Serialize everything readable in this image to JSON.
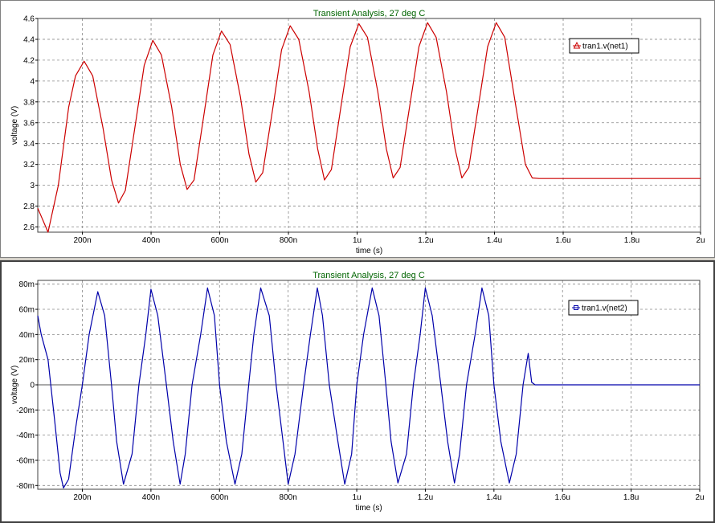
{
  "chart_data": [
    {
      "type": "line",
      "title": "Transient Analysis, 27 deg C",
      "xlabel": "time (s)",
      "ylabel": "voltage (V)",
      "xlim": [
        7e-08,
        2e-06
      ],
      "ylim": [
        2.55,
        4.6
      ],
      "x_ticks": [
        {
          "v": 2e-07,
          "label": "200n"
        },
        {
          "v": 4e-07,
          "label": "400n"
        },
        {
          "v": 6e-07,
          "label": "600n"
        },
        {
          "v": 8e-07,
          "label": "800n"
        },
        {
          "v": 1e-06,
          "label": "1u"
        },
        {
          "v": 1.2e-06,
          "label": "1.2u"
        },
        {
          "v": 1.4e-06,
          "label": "1.4u"
        },
        {
          "v": 1.6e-06,
          "label": "1.6u"
        },
        {
          "v": 1.8e-06,
          "label": "1.8u"
        },
        {
          "v": 2e-06,
          "label": "2u"
        }
      ],
      "y_ticks": [
        {
          "v": 2.6,
          "label": "2.6"
        },
        {
          "v": 2.8,
          "label": "2.8"
        },
        {
          "v": 3.0,
          "label": "3"
        },
        {
          "v": 3.2,
          "label": "3.2"
        },
        {
          "v": 3.4,
          "label": "3.4"
        },
        {
          "v": 3.6,
          "label": "3.6"
        },
        {
          "v": 3.8,
          "label": "3.8"
        },
        {
          "v": 4.0,
          "label": "4"
        },
        {
          "v": 4.2,
          "label": "4.2"
        },
        {
          "v": 4.4,
          "label": "4.4"
        },
        {
          "v": 4.6,
          "label": "4.6"
        }
      ],
      "grid": true,
      "legend_position": "top-right",
      "series": [
        {
          "name": "tran1.v(net1)",
          "color": "#cc0000",
          "marker": "triangle",
          "x": [
            7e-08,
            1e-07,
            1.3e-07,
            1.6e-07,
            1.8e-07,
            2.05e-07,
            2.3e-07,
            2.6e-07,
            2.85e-07,
            3.05e-07,
            3.25e-07,
            3.55e-07,
            3.8e-07,
            4.05e-07,
            4.3e-07,
            4.6e-07,
            4.85e-07,
            5.05e-07,
            5.25e-07,
            5.55e-07,
            5.8e-07,
            6.05e-07,
            6.3e-07,
            6.6e-07,
            6.85e-07,
            7.05e-07,
            7.25e-07,
            7.55e-07,
            7.8e-07,
            8.05e-07,
            8.3e-07,
            8.6e-07,
            8.85e-07,
            9.05e-07,
            9.25e-07,
            9.55e-07,
            9.8e-07,
            1.005e-06,
            1.03e-06,
            1.06e-06,
            1.085e-06,
            1.105e-06,
            1.125e-06,
            1.155e-06,
            1.18e-06,
            1.205e-06,
            1.23e-06,
            1.26e-06,
            1.285e-06,
            1.305e-06,
            1.325e-06,
            1.355e-06,
            1.38e-06,
            1.405e-06,
            1.43e-06,
            1.46e-06,
            1.49e-06,
            1.51e-06,
            1.53e-06,
            2e-06
          ],
          "y": [
            2.78,
            2.55,
            3.0,
            3.75,
            4.05,
            4.19,
            4.05,
            3.55,
            3.05,
            2.83,
            2.95,
            3.6,
            4.15,
            4.39,
            4.25,
            3.75,
            3.2,
            2.96,
            3.05,
            3.7,
            4.25,
            4.48,
            4.35,
            3.85,
            3.3,
            3.03,
            3.12,
            3.75,
            4.3,
            4.53,
            4.4,
            3.9,
            3.35,
            3.05,
            3.15,
            3.8,
            4.33,
            4.55,
            4.42,
            3.9,
            3.35,
            3.07,
            3.17,
            3.8,
            4.33,
            4.56,
            4.42,
            3.9,
            3.35,
            3.07,
            3.17,
            3.8,
            4.33,
            4.56,
            4.42,
            3.8,
            3.2,
            3.07,
            3.065,
            3.065
          ]
        }
      ]
    },
    {
      "type": "line",
      "title": "Transient Analysis, 27 deg C",
      "xlabel": "time (s)",
      "ylabel": "voltage (V)",
      "xlim": [
        7e-08,
        2e-06
      ],
      "ylim": [
        -0.083,
        0.083
      ],
      "x_ticks": [
        {
          "v": 2e-07,
          "label": "200n"
        },
        {
          "v": 4e-07,
          "label": "400n"
        },
        {
          "v": 6e-07,
          "label": "600n"
        },
        {
          "v": 8e-07,
          "label": "800n"
        },
        {
          "v": 1e-06,
          "label": "1u"
        },
        {
          "v": 1.2e-06,
          "label": "1.2u"
        },
        {
          "v": 1.4e-06,
          "label": "1.4u"
        },
        {
          "v": 1.6e-06,
          "label": "1.6u"
        },
        {
          "v": 1.8e-06,
          "label": "1.8u"
        },
        {
          "v": 2e-06,
          "label": "2u"
        }
      ],
      "y_ticks": [
        {
          "v": -0.08,
          "label": "-80m"
        },
        {
          "v": -0.06,
          "label": "-60m"
        },
        {
          "v": -0.04,
          "label": "-40m"
        },
        {
          "v": -0.02,
          "label": "-20m"
        },
        {
          "v": 0,
          "label": "0"
        },
        {
          "v": 0.02,
          "label": "20m"
        },
        {
          "v": 0.04,
          "label": "40m"
        },
        {
          "v": 0.06,
          "label": "60m"
        },
        {
          "v": 0.08,
          "label": "80m"
        }
      ],
      "grid": true,
      "legend_position": "top-right",
      "series": [
        {
          "name": "tran1.v(net2)",
          "color": "#0000aa",
          "marker": "square",
          "x": [
            7e-08,
            8e-08,
            1e-07,
            1.2e-07,
            1.35e-07,
            1.45e-07,
            1.6e-07,
            1.8e-07,
            2e-07,
            2.2e-07,
            2.45e-07,
            2.65e-07,
            2.85e-07,
            3e-07,
            3.2e-07,
            3.45e-07,
            3.65e-07,
            3.85e-07,
            4e-07,
            4.2e-07,
            4.45e-07,
            4.65e-07,
            4.85e-07,
            5e-07,
            5.2e-07,
            5.45e-07,
            5.65e-07,
            5.85e-07,
            6e-07,
            6.2e-07,
            6.45e-07,
            6.65e-07,
            6.85e-07,
            7e-07,
            7.2e-07,
            7.45e-07,
            7.65e-07,
            7.85e-07,
            8e-07,
            8.2e-07,
            8.45e-07,
            8.65e-07,
            8.85e-07,
            9e-07,
            9.2e-07,
            9.45e-07,
            9.65e-07,
            9.85e-07,
            1e-06,
            1.02e-06,
            1.045e-06,
            1.065e-06,
            1.085e-06,
            1.1e-06,
            1.12e-06,
            1.145e-06,
            1.165e-06,
            1.185e-06,
            1.2e-06,
            1.22e-06,
            1.245e-06,
            1.265e-06,
            1.285e-06,
            1.3e-06,
            1.32e-06,
            1.345e-06,
            1.365e-06,
            1.385e-06,
            1.4e-06,
            1.42e-06,
            1.445e-06,
            1.465e-06,
            1.485e-06,
            1.5e-06,
            1.51e-06,
            1.52e-06,
            2e-06
          ],
          "y": [
            0.055,
            0.04,
            0.02,
            -0.03,
            -0.07,
            -0.082,
            -0.075,
            -0.035,
            0.0,
            0.04,
            0.074,
            0.055,
            0.0,
            -0.045,
            -0.079,
            -0.055,
            0.0,
            0.04,
            0.076,
            0.055,
            0.0,
            -0.045,
            -0.079,
            -0.055,
            0.0,
            0.04,
            0.077,
            0.055,
            0.0,
            -0.045,
            -0.079,
            -0.055,
            0.0,
            0.04,
            0.077,
            0.055,
            0.0,
            -0.045,
            -0.079,
            -0.055,
            0.0,
            0.04,
            0.077,
            0.055,
            0.0,
            -0.045,
            -0.079,
            -0.055,
            0.0,
            0.04,
            0.077,
            0.055,
            0.0,
            -0.045,
            -0.078,
            -0.055,
            0.0,
            0.04,
            0.077,
            0.055,
            0.0,
            -0.045,
            -0.078,
            -0.055,
            0.0,
            0.04,
            0.077,
            0.055,
            0.0,
            -0.045,
            -0.078,
            -0.055,
            0.0,
            0.025,
            0.002,
            0.0,
            0.0
          ]
        }
      ]
    }
  ]
}
